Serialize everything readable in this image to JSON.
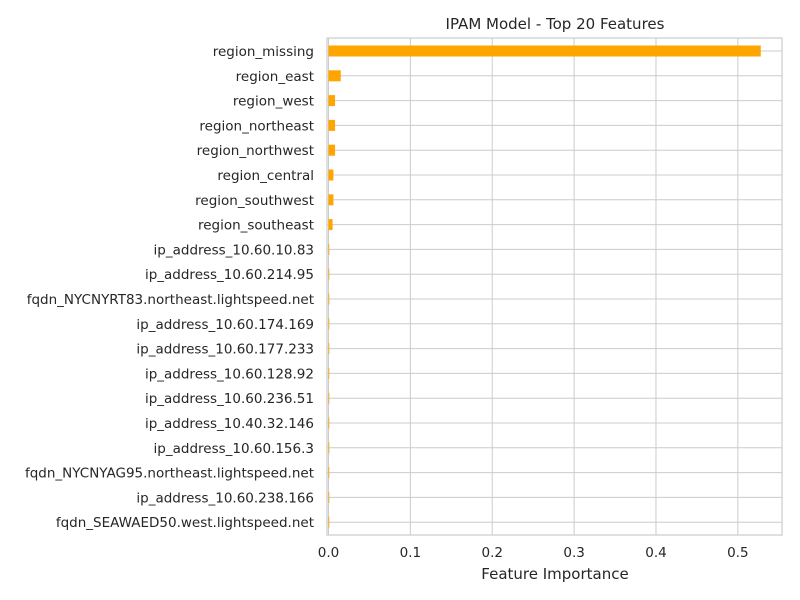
{
  "chart_data": {
    "type": "bar",
    "orientation": "horizontal",
    "title": "IPAM Model - Top 20 Features",
    "xlabel": "Feature Importance",
    "ylabel": "",
    "xlim": [
      0,
      0.55
    ],
    "xticks": [
      "0.0",
      "0.1",
      "0.2",
      "0.3",
      "0.4",
      "0.5"
    ],
    "grid": true,
    "bar_color": "#FFA500",
    "categories": [
      "region_missing",
      "region_east",
      "region_west",
      "region_northeast",
      "region_northwest",
      "region_central",
      "region_southwest",
      "region_southeast",
      "ip_address_10.60.10.83",
      "ip_address_10.60.214.95",
      "fqdn_NYCNYRT83.northeast.lightspeed.net",
      "ip_address_10.60.174.169",
      "ip_address_10.60.177.233",
      "ip_address_10.60.128.92",
      "ip_address_10.60.236.51",
      "ip_address_10.40.32.146",
      "ip_address_10.60.156.3",
      "fqdn_NYCNYAG95.northeast.lightspeed.net",
      "ip_address_10.60.238.166",
      "fqdn_SEAWAED50.west.lightspeed.net"
    ],
    "values": [
      0.528,
      0.015,
      0.008,
      0.008,
      0.008,
      0.006,
      0.006,
      0.005,
      0.001,
      0.001,
      0.001,
      0.001,
      0.001,
      0.001,
      0.001,
      0.001,
      0.001,
      0.001,
      0.001,
      0.001
    ]
  }
}
